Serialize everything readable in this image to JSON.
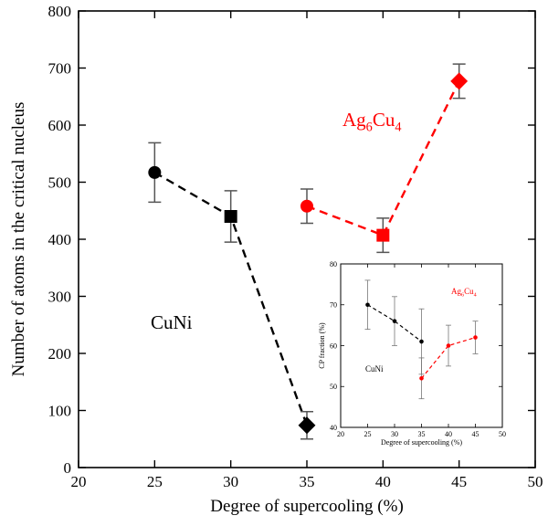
{
  "chart_data": [
    {
      "type": "scatter",
      "xlabel": "Degree of supercooling (%)",
      "ylabel": "Number of atoms in the critical nucleus",
      "xlim": [
        20,
        50
      ],
      "ylim": [
        0,
        800
      ],
      "xticks": [
        20,
        25,
        30,
        35,
        40,
        45,
        50
      ],
      "yticks": [
        0,
        100,
        200,
        300,
        400,
        500,
        600,
        700,
        800
      ],
      "grid": false,
      "series": [
        {
          "name": "CuNi",
          "color": "#000000",
          "line_style": "dashed",
          "points": [
            {
              "x": 25,
              "y": 517,
              "err": 52,
              "marker": "circle"
            },
            {
              "x": 30,
              "y": 440,
              "err": 45,
              "marker": "square"
            },
            {
              "x": 35,
              "y": 74,
              "err": 24,
              "marker": "diamond"
            }
          ]
        },
        {
          "name": "Ag6Cu4",
          "label_base": "Ag",
          "label_sub1": "6",
          "label_mid": "Cu",
          "label_sub2": "4",
          "color": "#ff0000",
          "line_style": "dashed",
          "points": [
            {
              "x": 35,
              "y": 458,
              "err": 30,
              "marker": "circle"
            },
            {
              "x": 40,
              "y": 407,
              "err": 30,
              "marker": "square"
            },
            {
              "x": 45,
              "y": 677,
              "err": 30,
              "marker": "diamond"
            }
          ]
        }
      ]
    },
    {
      "type": "scatter",
      "role": "inset",
      "xlabel": "Degree of supercooling (%)",
      "ylabel": "CP fraction (%)",
      "xlim": [
        20,
        50
      ],
      "ylim": [
        40,
        80
      ],
      "xticks": [
        20,
        25,
        30,
        35,
        40,
        45,
        50
      ],
      "yticks": [
        40,
        50,
        60,
        70,
        80
      ],
      "grid": false,
      "series": [
        {
          "name": "CuNi",
          "color": "#000000",
          "line_style": "dashed",
          "points": [
            {
              "x": 25,
              "y": 70,
              "err": 6
            },
            {
              "x": 30,
              "y": 66,
              "err": 6
            },
            {
              "x": 35,
              "y": 61,
              "err": 8
            }
          ]
        },
        {
          "name": "Ag6Cu4",
          "label_base": "Ag",
          "label_sub1": "6",
          "label_mid": "Cu",
          "label_sub2": "4",
          "color": "#ff0000",
          "line_style": "dashed",
          "points": [
            {
              "x": 35,
              "y": 52,
              "err": 5
            },
            {
              "x": 40,
              "y": 60,
              "err": 5
            },
            {
              "x": 45,
              "y": 62,
              "err": 4
            }
          ]
        }
      ]
    }
  ]
}
